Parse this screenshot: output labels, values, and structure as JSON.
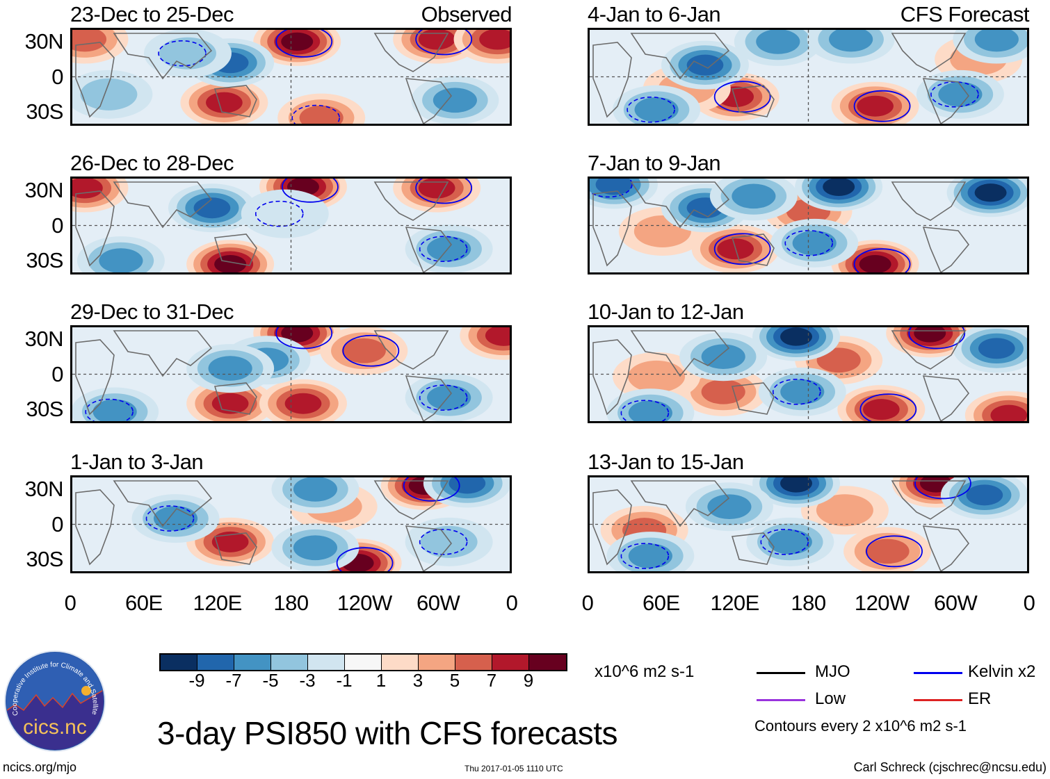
{
  "title": "3-day PSI850 with CFS forecasts",
  "footer": {
    "left": "ncics.org/mjo",
    "center": "Thu 2017-01-05 1110 UTC",
    "right": "Carl Schreck (cjschrec@ncsu.edu)"
  },
  "logo": {
    "name": "cics.nc",
    "ring_text": "Cooperative Institute for Climate and Satellites"
  },
  "colorbar": {
    "units": "x10^6 m2 s-1",
    "levels": [
      -9,
      -7,
      -5,
      -3,
      -1,
      1,
      3,
      5,
      7,
      9
    ],
    "tick_labels": [
      "-9",
      "-7",
      "-5",
      "-3",
      "-1",
      "1",
      "3",
      "5",
      "7",
      "9"
    ],
    "colors": [
      "#0a2f61",
      "#2166ac",
      "#4393c3",
      "#92c5de",
      "#d1e5f0",
      "#f7f7f7",
      "#fddbc7",
      "#f4a582",
      "#d6604d",
      "#b2182b",
      "#67001f"
    ]
  },
  "legend": {
    "items": [
      {
        "label": "MJO",
        "color": "#000000"
      },
      {
        "label": "Kelvin x2",
        "color": "#0000ee"
      },
      {
        "label": "Low",
        "color": "#9933dd"
      },
      {
        "label": "ER",
        "color": "#dd2222"
      }
    ],
    "contour_note": "Contours every 2 x10^6 m2 s-1"
  },
  "chart_data": [
    {
      "type": "heatmap",
      "title": "23-Dec to 25-Dec",
      "tag": "Observed",
      "column": "left",
      "x_range_deg": [
        0,
        360
      ],
      "y_range_deg": [
        -40,
        40
      ],
      "xticks": [
        "0",
        "60E",
        "120E",
        "180",
        "120W",
        "60W",
        "0"
      ],
      "yticks": [
        "30N",
        "0",
        "30S"
      ],
      "anomalies": [
        {
          "lon": 185,
          "lat": 30,
          "value": 10
        },
        {
          "lon": 300,
          "lat": 32,
          "value": 9
        },
        {
          "lon": 350,
          "lat": 32,
          "value": 9
        },
        {
          "lon": 10,
          "lat": 32,
          "value": 7
        },
        {
          "lon": 125,
          "lat": -22,
          "value": 9
        },
        {
          "lon": 130,
          "lat": 12,
          "value": -9
        },
        {
          "lon": 315,
          "lat": -20,
          "value": -7
        },
        {
          "lon": 30,
          "lat": -15,
          "value": -4
        },
        {
          "lon": 95,
          "lat": 20,
          "value": -5
        },
        {
          "lon": 205,
          "lat": -35,
          "value": 6
        }
      ]
    },
    {
      "type": "heatmap",
      "title": "26-Dec to 28-Dec",
      "tag": "",
      "column": "left",
      "x_range_deg": [
        0,
        360
      ],
      "y_range_deg": [
        -40,
        40
      ],
      "xticks": [
        "0",
        "60E",
        "120E",
        "180",
        "120W",
        "60W",
        "0"
      ],
      "yticks": [
        "30N",
        "0",
        "30S"
      ],
      "anomalies": [
        {
          "lon": 190,
          "lat": 33,
          "value": 10
        },
        {
          "lon": 300,
          "lat": 32,
          "value": 9
        },
        {
          "lon": 10,
          "lat": 32,
          "value": 8
        },
        {
          "lon": 130,
          "lat": -33,
          "value": 10
        },
        {
          "lon": 115,
          "lat": 15,
          "value": -9
        },
        {
          "lon": 40,
          "lat": -30,
          "value": -6
        },
        {
          "lon": 310,
          "lat": -20,
          "value": -6
        },
        {
          "lon": 175,
          "lat": 10,
          "value": -3
        }
      ]
    },
    {
      "type": "heatmap",
      "title": "29-Dec to 31-Dec",
      "tag": "",
      "column": "left",
      "x_range_deg": [
        0,
        360
      ],
      "y_range_deg": [
        -40,
        40
      ],
      "xticks": [
        "0",
        "60E",
        "120E",
        "180",
        "120W",
        "60W",
        "0"
      ],
      "yticks": [
        "30N",
        "0",
        "30S"
      ],
      "anomalies": [
        {
          "lon": 185,
          "lat": 35,
          "value": 10
        },
        {
          "lon": 240,
          "lat": 20,
          "value": 6
        },
        {
          "lon": 355,
          "lat": 33,
          "value": 8
        },
        {
          "lon": 130,
          "lat": -25,
          "value": 8
        },
        {
          "lon": 190,
          "lat": -25,
          "value": 9
        },
        {
          "lon": 160,
          "lat": 12,
          "value": -7
        },
        {
          "lon": 130,
          "lat": 5,
          "value": -7
        },
        {
          "lon": 310,
          "lat": -20,
          "value": -7
        },
        {
          "lon": 35,
          "lat": -32,
          "value": -6
        }
      ]
    },
    {
      "type": "heatmap",
      "title": "1-Jan to 3-Jan",
      "tag": "",
      "column": "left",
      "x_range_deg": [
        0,
        360
      ],
      "y_range_deg": [
        -40,
        40
      ],
      "xticks": [
        "0",
        "60E",
        "120E",
        "180",
        "120W",
        "60W",
        "0"
      ],
      "yticks": [
        "30N",
        "0",
        "30S"
      ],
      "anomalies": [
        {
          "lon": 290,
          "lat": 33,
          "value": 10
        },
        {
          "lon": 235,
          "lat": -33,
          "value": 10
        },
        {
          "lon": 130,
          "lat": -15,
          "value": 8
        },
        {
          "lon": 215,
          "lat": 15,
          "value": 4
        },
        {
          "lon": 200,
          "lat": 30,
          "value": -7
        },
        {
          "lon": 325,
          "lat": 35,
          "value": -8
        },
        {
          "lon": 200,
          "lat": -20,
          "value": -7
        },
        {
          "lon": 85,
          "lat": 5,
          "value": -6
        },
        {
          "lon": 310,
          "lat": -15,
          "value": -5
        }
      ]
    },
    {
      "type": "heatmap",
      "title": "4-Jan to 6-Jan",
      "tag": "CFS Forecast",
      "column": "right",
      "x_range_deg": [
        0,
        360
      ],
      "y_range_deg": [
        -40,
        40
      ],
      "xticks": [
        "0",
        "60E",
        "120E",
        "180",
        "120W",
        "60W",
        "0"
      ],
      "yticks": [
        "30N",
        "0",
        "30S"
      ],
      "anomalies": [
        {
          "lon": 235,
          "lat": -25,
          "value": 8
        },
        {
          "lon": 120,
          "lat": -17,
          "value": 8
        },
        {
          "lon": 80,
          "lat": -10,
          "value": 5
        },
        {
          "lon": 320,
          "lat": 15,
          "value": 5
        },
        {
          "lon": 95,
          "lat": 10,
          "value": -8
        },
        {
          "lon": 155,
          "lat": 30,
          "value": -7
        },
        {
          "lon": 215,
          "lat": 32,
          "value": -6
        },
        {
          "lon": 335,
          "lat": 32,
          "value": -6
        },
        {
          "lon": 305,
          "lat": -15,
          "value": -6
        },
        {
          "lon": 55,
          "lat": -28,
          "value": -6
        }
      ]
    },
    {
      "type": "heatmap",
      "title": "7-Jan to 9-Jan",
      "tag": "",
      "column": "right",
      "x_range_deg": [
        0,
        360
      ],
      "y_range_deg": [
        -40,
        40
      ],
      "xticks": [
        "0",
        "60E",
        "120E",
        "180",
        "120W",
        "60W",
        "0"
      ],
      "yticks": [
        "30N",
        "0",
        "30S"
      ],
      "anomalies": [
        {
          "lon": 120,
          "lat": -20,
          "value": 9
        },
        {
          "lon": 235,
          "lat": -33,
          "value": 10
        },
        {
          "lon": 180,
          "lat": 12,
          "value": 6
        },
        {
          "lon": 60,
          "lat": -5,
          "value": 5
        },
        {
          "lon": 95,
          "lat": 15,
          "value": -9
        },
        {
          "lon": 135,
          "lat": 25,
          "value": -7
        },
        {
          "lon": 205,
          "lat": 33,
          "value": -10
        },
        {
          "lon": 330,
          "lat": 28,
          "value": -10
        },
        {
          "lon": 20,
          "lat": 35,
          "value": -8
        },
        {
          "lon": 185,
          "lat": -15,
          "value": -7
        }
      ]
    },
    {
      "type": "heatmap",
      "title": "10-Jan to 12-Jan",
      "tag": "",
      "column": "right",
      "x_range_deg": [
        0,
        360
      ],
      "y_range_deg": [
        -40,
        40
      ],
      "xticks": [
        "0",
        "60E",
        "120E",
        "180",
        "120W",
        "60W",
        "0"
      ],
      "yticks": [
        "30N",
        "0",
        "30S"
      ],
      "anomalies": [
        {
          "lon": 280,
          "lat": 35,
          "value": 10
        },
        {
          "lon": 240,
          "lat": -30,
          "value": 9
        },
        {
          "lon": 345,
          "lat": -35,
          "value": 9
        },
        {
          "lon": 205,
          "lat": 12,
          "value": 6
        },
        {
          "lon": 110,
          "lat": -15,
          "value": 6
        },
        {
          "lon": 55,
          "lat": -2,
          "value": 5
        },
        {
          "lon": 170,
          "lat": 32,
          "value": -10
        },
        {
          "lon": 335,
          "lat": 22,
          "value": -9
        },
        {
          "lon": 110,
          "lat": 15,
          "value": -6
        },
        {
          "lon": 175,
          "lat": -15,
          "value": -7
        },
        {
          "lon": 50,
          "lat": -33,
          "value": -6
        }
      ]
    },
    {
      "type": "heatmap",
      "title": "13-Jan to 15-Jan",
      "tag": "",
      "column": "right",
      "x_range_deg": [
        0,
        360
      ],
      "y_range_deg": [
        -40,
        40
      ],
      "xticks": [
        "0",
        "60E",
        "120E",
        "180",
        "120W",
        "60W",
        "0"
      ],
      "yticks": [
        "30N",
        "0",
        "30S"
      ],
      "anomalies": [
        {
          "lon": 285,
          "lat": 35,
          "value": 10
        },
        {
          "lon": 245,
          "lat": -23,
          "value": 7
        },
        {
          "lon": 45,
          "lat": -5,
          "value": 6
        },
        {
          "lon": 210,
          "lat": 12,
          "value": 4
        },
        {
          "lon": 170,
          "lat": 35,
          "value": -10
        },
        {
          "lon": 325,
          "lat": 25,
          "value": -8
        },
        {
          "lon": 115,
          "lat": 15,
          "value": -6
        },
        {
          "lon": 165,
          "lat": -15,
          "value": -6
        },
        {
          "lon": 50,
          "lat": -27,
          "value": -6
        }
      ]
    }
  ]
}
